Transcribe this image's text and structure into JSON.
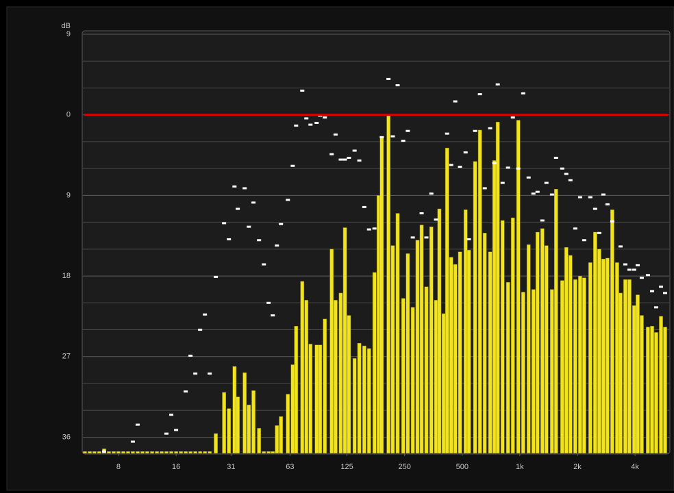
{
  "chart_data": {
    "type": "bar",
    "ylabel": "dB",
    "xscale": "log",
    "xlim": [
      5.17,
      6085
    ],
    "xticks": [
      8,
      16,
      31,
      63,
      125,
      250,
      500,
      {
        "value": 1000,
        "label": "1k"
      },
      {
        "value": 2000,
        "label": "2k"
      },
      {
        "value": 4000,
        "label": "4k"
      }
    ],
    "ylim": [
      -37.8,
      9
    ],
    "yticks": [
      9,
      0,
      {
        "value": -9,
        "label": "9"
      },
      {
        "value": -18,
        "label": "18"
      },
      {
        "value": -27,
        "label": "27"
      },
      {
        "value": -36,
        "label": "36"
      }
    ],
    "y_minor_ticks": [
      6,
      3,
      -3,
      -6,
      -12,
      -15,
      -21,
      -24,
      -30,
      -33
    ],
    "grid": true,
    "reference_line": {
      "value": 0,
      "color": "#e00000"
    },
    "x": [
      5.34,
      5.66,
      5.99,
      6.35,
      6.73,
      7.13,
      7.55,
      8,
      8.48,
      8.98,
      9.51,
      10.08,
      10.68,
      11.31,
      11.99,
      12.7,
      13.45,
      14.25,
      15.1,
      16,
      16.95,
      17.96,
      19.03,
      20.16,
      21.36,
      22.63,
      23.97,
      25.8,
      28.5,
      30.2,
      32.3,
      33.6,
      36.5,
      38.4,
      40.6,
      43.4,
      46.0,
      48.7,
      51.2,
      53.8,
      56.5,
      61.4,
      65.1,
      67.8,
      73.0,
      76.7,
      80.6,
      86.8,
      90.5,
      95.8,
      104,
      109,
      116,
      122,
      128,
      137,
      145,
      154,
      163,
      174,
      183,
      190,
      206,
      217,
      230,
      246,
      260,
      276,
      292,
      307,
      325,
      345,
      365,
      380,
      400,
      417,
      438,
      460,
      487,
      521,
      542,
      584,
      619,
      656,
      700,
      736,
      767,
      813,
      868,
      920,
      982,
      1042,
      1112,
      1178,
      1238,
      1312,
      1378,
      1473,
      1547,
      1666,
      1750,
      1839,
      1950,
      2066,
      2170,
      2336,
      2476,
      2602,
      2734,
      2872,
      3042,
      3224,
      3360,
      3560,
      3741,
      3962,
      4130,
      4338,
      4672,
      4912,
      5160,
      5468,
      5744
    ],
    "series": [
      {
        "color": "#f2e41c",
        "values": [
          -37.6,
          -37.6,
          -37.6,
          -37.6,
          -37.3,
          -37.6,
          -37.6,
          -37.6,
          -37.6,
          -37.6,
          -37.6,
          -37.6,
          -37.6,
          -37.6,
          -37.6,
          -37.6,
          -37.6,
          -37.6,
          -37.6,
          -37.6,
          -37.6,
          -37.6,
          -37.6,
          -37.6,
          -37.6,
          -37.6,
          -37.6,
          -35.6,
          -31.0,
          -32.8,
          -28.1,
          -31.5,
          -28.8,
          -32.4,
          -30.8,
          -35.0,
          -37.6,
          -37.6,
          -37.6,
          -34.7,
          -33.7,
          -31.2,
          -27.9,
          -23.6,
          -18.6,
          -20.7,
          -25.6,
          -25.7,
          -25.7,
          -22.8,
          -15.0,
          -20.7,
          -19.9,
          -12.6,
          -22.4,
          -27.2,
          -25.5,
          -25.8,
          -26.1,
          -17.6,
          -9.0,
          -2.4,
          -0.1,
          -14.6,
          -11.0,
          -20.5,
          -15.5,
          -21.5,
          -14.0,
          -12.3,
          -19.2,
          -12.5,
          -20.7,
          -10.5,
          -22.2,
          -3.7,
          -15.9,
          -16.7,
          -15.3,
          -10.6,
          -15.1,
          -5.2,
          -1.7,
          -13.2,
          -15.3,
          -5.1,
          -0.8,
          -11.8,
          -18.7,
          -11.5,
          -0.6,
          -19.8,
          -14.5,
          -19.5,
          -13.1,
          -12.7,
          -14.6,
          -19.5,
          -8.3,
          -18.5,
          -14.8,
          -15.7,
          -18.4,
          -18.0,
          -18.2,
          -16.5,
          -13.1,
          -15.0,
          -16.1,
          -16.0,
          -10.6,
          -16.5,
          -19.9,
          -18.4,
          -18.4,
          -21.3,
          -20.1,
          -22.4,
          -23.7,
          -23.6,
          -24.3,
          -22.5,
          -23.7
        ]
      },
      {
        "color": "#ffffff",
        "marker": "dash",
        "values": [
          null,
          null,
          null,
          null,
          -37.6,
          null,
          null,
          null,
          null,
          null,
          -36.5,
          -34.6,
          null,
          null,
          null,
          null,
          null,
          -35.6,
          -33.5,
          -35.2,
          null,
          -30.9,
          -26.9,
          -28.9,
          -24.0,
          -22.3,
          -28.9,
          -18.1,
          -12.1,
          -13.9,
          -8.0,
          -10.5,
          -8.2,
          -12.5,
          -9.8,
          -14.0,
          -16.7,
          -21.0,
          -22.4,
          -14.6,
          -12.2,
          -9.5,
          -5.7,
          -1.2,
          2.7,
          -0.4,
          -1.1,
          -0.9,
          -0.1,
          -0.3,
          -4.4,
          -2.2,
          -5.0,
          -5.0,
          -4.8,
          -4.0,
          -5.1,
          -10.3,
          -12.8,
          -12.7,
          null,
          -2.5,
          4.0,
          -2.4,
          3.3,
          -2.9,
          -1.8,
          -13.7,
          null,
          -11.0,
          -13.7,
          -8.8,
          -11.7,
          null,
          null,
          -2.1,
          -5.6,
          1.5,
          -5.8,
          -4.2,
          -13.9,
          -1.8,
          2.3,
          -8.2,
          -1.5,
          -5.4,
          3.4,
          -7.6,
          -5.9,
          -0.3,
          -6.0,
          2.4,
          -7.0,
          -8.8,
          -8.6,
          -11.8,
          -7.6,
          -8.9,
          -4.8,
          -6.0,
          -6.6,
          -7.3,
          -12.7,
          -9.2,
          -14.0,
          -9.2,
          -10.5,
          -13.2,
          -8.9,
          -10.0,
          -11.9,
          null,
          -14.7,
          -16.7,
          -17.3,
          -17.3,
          -16.8,
          -18.2,
          -17.9,
          -19.7,
          -21.5,
          -19.2,
          -19.9
        ]
      }
    ]
  }
}
